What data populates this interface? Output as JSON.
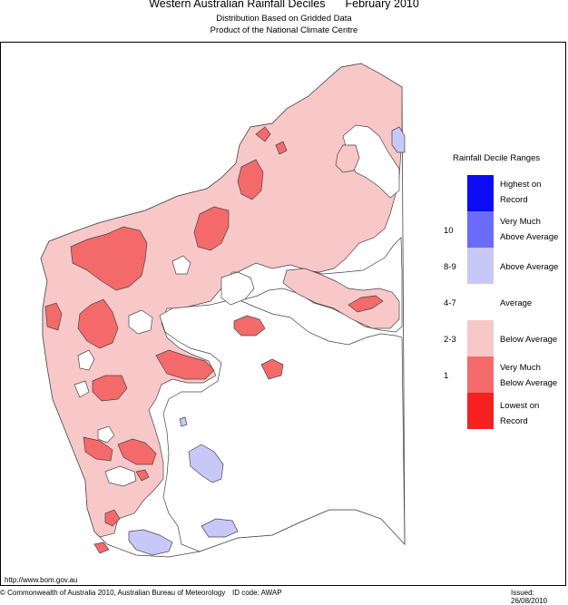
{
  "header": {
    "title": "Western Australian Rainfall Deciles",
    "period": "February 2010",
    "subtitle1": "Distribution Based on Gridded Data",
    "subtitle2": "Product of the National Climate Centre"
  },
  "legend": {
    "title": "Rainfall Decile Ranges",
    "items": [
      {
        "code": "",
        "label_1": "Highest on",
        "label_2": "Record",
        "color": "#0b0bf5"
      },
      {
        "code": "10",
        "label_1": "Very Much",
        "label_2": "Above Average",
        "color": "#6b6bfa"
      },
      {
        "code": "8-9",
        "label_1": "Above Average",
        "label_2": "",
        "color": "#c8c8f8"
      },
      {
        "code": "4-7",
        "label_1": "Average",
        "label_2": "",
        "color": "#ffffff"
      },
      {
        "code": "2-3",
        "label_1": "Below Average",
        "label_2": "",
        "color": "#f8c8c8"
      },
      {
        "code": "1",
        "label_1": "Very Much",
        "label_2": "Below Average",
        "color": "#f46a6a"
      },
      {
        "code": "",
        "label_1": "Lowest on",
        "label_2": "Record",
        "color": "#f52020"
      }
    ]
  },
  "footer": {
    "url": "http://www.bom.gov.au",
    "copyright": "© Commonwealth of Australia 2010, Australian Bureau of Meteorology",
    "id_code": "ID code: AWAP",
    "issued": "Issued: 26/08/2010"
  },
  "colors": {
    "below_average": "#f8c8c8",
    "very_much_below": "#f46a6a",
    "above_average": "#c8c8f8",
    "average": "#ffffff",
    "outline": "#444444"
  }
}
